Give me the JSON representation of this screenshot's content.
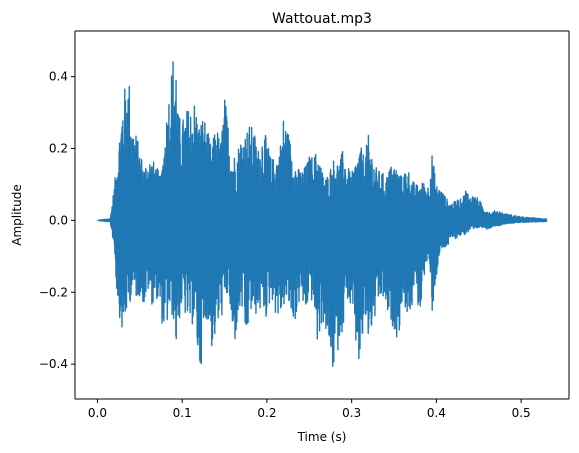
{
  "chart_data": {
    "type": "line",
    "title": "Wattouat.mp3",
    "xlabel": "Time (s)",
    "ylabel": "Amplitude",
    "xlim": [
      -0.0265,
      0.5565
    ],
    "ylim": [
      -0.497,
      0.527
    ],
    "x_ticks": [
      0.0,
      0.1,
      0.2,
      0.3,
      0.4,
      0.5
    ],
    "x_tick_labels": [
      "0.0",
      "0.1",
      "0.2",
      "0.3",
      "0.4",
      "0.5"
    ],
    "y_ticks": [
      -0.4,
      -0.2,
      0.0,
      0.2,
      0.4
    ],
    "y_tick_labels": [
      "−0.4",
      "−0.2",
      "0.0",
      "0.2",
      "0.4"
    ],
    "grid": false,
    "legend": "none",
    "series": [
      {
        "color": "#1f77b4",
        "envelope": {
          "x": [
            0.0,
            0.015,
            0.02,
            0.022,
            0.025,
            0.03,
            0.035,
            0.038,
            0.04,
            0.045,
            0.05,
            0.055,
            0.06,
            0.065,
            0.07,
            0.075,
            0.08,
            0.085,
            0.09,
            0.093,
            0.095,
            0.1,
            0.105,
            0.11,
            0.115,
            0.12,
            0.125,
            0.13,
            0.135,
            0.14,
            0.145,
            0.15,
            0.155,
            0.16,
            0.165,
            0.17,
            0.175,
            0.18,
            0.185,
            0.19,
            0.195,
            0.2,
            0.205,
            0.21,
            0.215,
            0.22,
            0.225,
            0.23,
            0.235,
            0.24,
            0.245,
            0.25,
            0.255,
            0.26,
            0.265,
            0.27,
            0.275,
            0.28,
            0.285,
            0.29,
            0.295,
            0.3,
            0.305,
            0.31,
            0.315,
            0.32,
            0.325,
            0.33,
            0.335,
            0.34,
            0.345,
            0.35,
            0.355,
            0.36,
            0.365,
            0.37,
            0.375,
            0.38,
            0.385,
            0.39,
            0.395,
            0.4,
            0.405,
            0.41,
            0.415,
            0.42,
            0.425,
            0.43,
            0.435,
            0.44,
            0.445,
            0.45,
            0.455,
            0.46,
            0.465,
            0.47,
            0.475,
            0.48,
            0.49,
            0.5,
            0.51,
            0.52,
            0.53
          ],
          "upper": [
            0.0,
            0.005,
            0.1,
            0.15,
            0.22,
            0.35,
            0.4,
            0.39,
            0.28,
            0.25,
            0.2,
            0.15,
            0.18,
            0.17,
            0.15,
            0.12,
            0.26,
            0.38,
            0.48,
            0.46,
            0.3,
            0.28,
            0.31,
            0.32,
            0.34,
            0.27,
            0.3,
            0.25,
            0.2,
            0.28,
            0.21,
            0.35,
            0.26,
            0.18,
            0.2,
            0.24,
            0.25,
            0.27,
            0.25,
            0.2,
            0.25,
            0.23,
            0.17,
            0.18,
            0.2,
            0.3,
            0.25,
            0.2,
            0.15,
            0.14,
            0.15,
            0.18,
            0.18,
            0.2,
            0.14,
            0.12,
            0.15,
            0.18,
            0.16,
            0.2,
            0.15,
            0.13,
            0.17,
            0.21,
            0.18,
            0.24,
            0.18,
            0.14,
            0.14,
            0.12,
            0.15,
            0.16,
            0.14,
            0.12,
            0.16,
            0.12,
            0.1,
            0.1,
            0.11,
            0.1,
            0.19,
            0.1,
            0.09,
            0.07,
            0.05,
            0.05,
            0.06,
            0.06,
            0.09,
            0.07,
            0.07,
            0.06,
            0.04,
            0.03,
            0.02,
            0.03,
            0.025,
            0.02,
            0.015,
            0.01,
            0.008,
            0.006,
            0.005
          ],
          "lower": [
            0.0,
            -0.005,
            -0.08,
            -0.18,
            -0.25,
            -0.33,
            -0.25,
            -0.24,
            -0.2,
            -0.22,
            -0.21,
            -0.24,
            -0.2,
            -0.24,
            -0.22,
            -0.28,
            -0.32,
            -0.26,
            -0.28,
            -0.36,
            -0.3,
            -0.24,
            -0.28,
            -0.3,
            -0.28,
            -0.44,
            -0.36,
            -0.26,
            -0.36,
            -0.32,
            -0.28,
            -0.25,
            -0.2,
            -0.38,
            -0.3,
            -0.24,
            -0.36,
            -0.26,
            -0.27,
            -0.26,
            -0.25,
            -0.28,
            -0.21,
            -0.26,
            -0.28,
            -0.24,
            -0.24,
            -0.28,
            -0.28,
            -0.2,
            -0.28,
            -0.21,
            -0.24,
            -0.36,
            -0.28,
            -0.32,
            -0.4,
            -0.44,
            -0.34,
            -0.3,
            -0.22,
            -0.26,
            -0.36,
            -0.43,
            -0.28,
            -0.34,
            -0.3,
            -0.26,
            -0.22,
            -0.24,
            -0.3,
            -0.3,
            -0.34,
            -0.22,
            -0.26,
            -0.27,
            -0.17,
            -0.28,
            -0.16,
            -0.11,
            -0.26,
            -0.16,
            -0.09,
            -0.08,
            -0.07,
            -0.05,
            -0.05,
            -0.04,
            -0.04,
            -0.03,
            -0.03,
            -0.02,
            -0.02,
            -0.025,
            -0.02,
            -0.015,
            -0.015,
            -0.01,
            -0.008,
            -0.006,
            -0.005,
            -0.004,
            -0.003
          ]
        }
      }
    ]
  }
}
